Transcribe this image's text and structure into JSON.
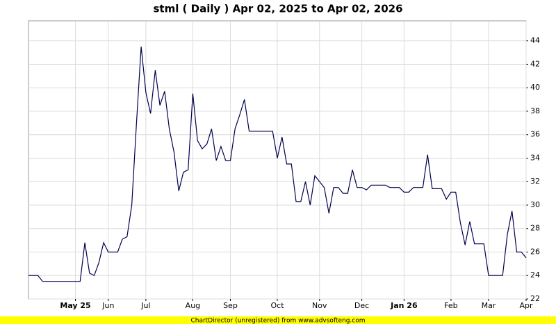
{
  "chart_data": {
    "type": "line",
    "title": "stml ( Daily ) Apr 02, 2025 to Apr 02, 2026",
    "footer": "ChartDirector (unregistered) from www.advsofteng.com",
    "categories": [
      null,
      null,
      null,
      null,
      null,
      null,
      null,
      null,
      null,
      null,
      "May 25",
      null,
      null,
      null,
      null,
      null,
      null,
      "Jun",
      null,
      null,
      null,
      null,
      null,
      null,
      null,
      "Jul",
      null,
      null,
      null,
      null,
      null,
      null,
      null,
      null,
      null,
      "Aug",
      null,
      null,
      null,
      null,
      null,
      null,
      null,
      "Sep",
      null,
      null,
      null,
      null,
      null,
      null,
      null,
      null,
      null,
      "Oct",
      null,
      null,
      null,
      null,
      null,
      null,
      null,
      null,
      "Nov",
      null,
      null,
      null,
      null,
      null,
      null,
      null,
      null,
      "Dec",
      null,
      null,
      null,
      null,
      null,
      null,
      null,
      null,
      "Jan 26",
      null,
      null,
      null,
      null,
      null,
      null,
      null,
      null,
      null,
      "Feb",
      null,
      null,
      null,
      null,
      null,
      null,
      null,
      "Mar",
      null,
      null,
      null,
      null,
      null,
      null,
      null,
      "Apr"
    ],
    "series": [
      {
        "name": "stml",
        "color": "#000050",
        "values": [
          24.0,
          24.0,
          24.0,
          23.5,
          23.5,
          23.5,
          23.5,
          23.5,
          23.5,
          23.5,
          23.5,
          23.5,
          26.8,
          24.2,
          24.0,
          25.1,
          26.8,
          26.0,
          26.0,
          26.0,
          27.1,
          27.3,
          30.0,
          37.0,
          43.5,
          39.6,
          37.8,
          41.5,
          38.5,
          39.7,
          36.5,
          34.5,
          31.2,
          32.8,
          33.0,
          39.5,
          35.5,
          34.8,
          35.2,
          36.5,
          33.8,
          35.0,
          33.8,
          33.8,
          36.5,
          37.7,
          39.0,
          36.3,
          36.3,
          36.3,
          36.3,
          36.3,
          36.3,
          34.0,
          35.8,
          33.5,
          33.5,
          30.3,
          30.3,
          32.0,
          30.0,
          32.5,
          32.0,
          31.5,
          29.3,
          31.5,
          31.5,
          31.0,
          31.0,
          33.0,
          31.5,
          31.5,
          31.3,
          31.7,
          31.7,
          31.7,
          31.7,
          31.5,
          31.5,
          31.5,
          31.1,
          31.1,
          31.5,
          31.5,
          31.5,
          34.3,
          31.4,
          31.4,
          31.4,
          30.5,
          31.1,
          31.1,
          28.5,
          26.6,
          28.6,
          26.7,
          26.7,
          26.7,
          24.0,
          24.0,
          24.0,
          24.0,
          27.5,
          29.5,
          26.0,
          26.0,
          25.5
        ]
      }
    ],
    "ylim": [
      22,
      45.7
    ],
    "yticks": [
      22,
      24,
      26,
      28,
      30,
      32,
      34,
      36,
      38,
      40,
      42,
      44
    ],
    "grid": true
  }
}
